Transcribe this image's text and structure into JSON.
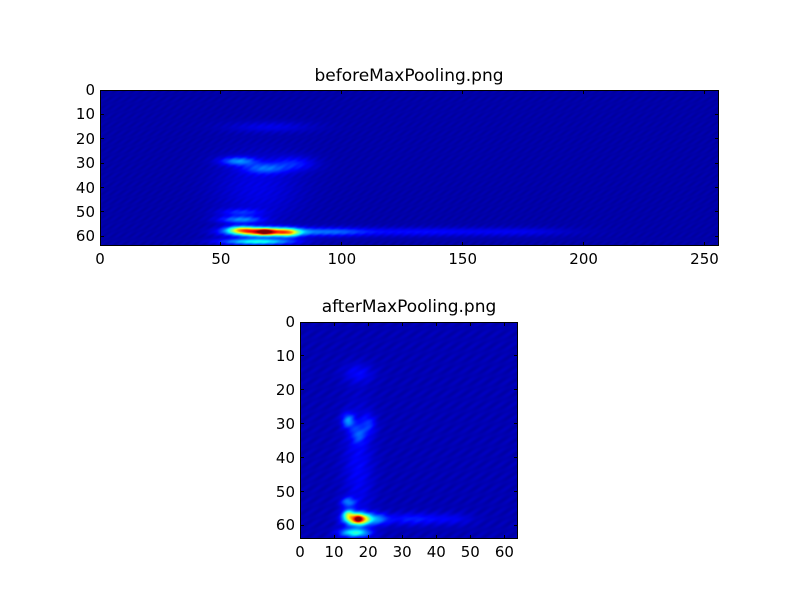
{
  "chart_data": [
    {
      "type": "heatmap",
      "title": "beforeMaxPooling.png",
      "colormap": "jet",
      "xlim": [
        0,
        256
      ],
      "ylim": [
        64,
        0
      ],
      "xticks": [
        0,
        50,
        100,
        150,
        200,
        250
      ],
      "yticks": [
        0,
        10,
        20,
        30,
        40,
        50,
        60
      ],
      "background_value": 0.04,
      "features": [
        {
          "x": 68,
          "y": 58,
          "sx": 9,
          "sy": 1.2,
          "v": 0.85
        },
        {
          "x": 68,
          "y": 58,
          "sx": 2,
          "sy": 0.8,
          "v": 0.3
        },
        {
          "x": 58,
          "y": 57,
          "sx": 4,
          "sy": 1.0,
          "v": 0.35
        },
        {
          "x": 78,
          "y": 58.5,
          "sx": 3,
          "sy": 1.2,
          "v": 0.25
        },
        {
          "x": 65,
          "y": 62,
          "sx": 10,
          "sy": 0.9,
          "v": 0.35
        },
        {
          "x": 58,
          "y": 53,
          "sx": 6,
          "sy": 1.0,
          "v": 0.2
        },
        {
          "x": 58,
          "y": 50,
          "sx": 6,
          "sy": 1.0,
          "v": 0.1
        },
        {
          "x": 57,
          "y": 29,
          "sx": 5,
          "sy": 1.2,
          "v": 0.2
        },
        {
          "x": 68,
          "y": 32,
          "sx": 6,
          "sy": 1.5,
          "v": 0.15
        },
        {
          "x": 80,
          "y": 30,
          "sx": 6,
          "sy": 2,
          "v": 0.1
        },
        {
          "x": 70,
          "y": 15,
          "sx": 12,
          "sy": 1.5,
          "v": 0.06
        },
        {
          "x": 65,
          "y": 40,
          "sx": 12,
          "sy": 10,
          "v": 0.06
        },
        {
          "x": 95,
          "y": 58,
          "sx": 10,
          "sy": 1.2,
          "v": 0.15
        },
        {
          "x": 130,
          "y": 58,
          "sx": 25,
          "sy": 1.2,
          "v": 0.09
        },
        {
          "x": 175,
          "y": 58,
          "sx": 15,
          "sy": 1.2,
          "v": 0.05
        }
      ]
    },
    {
      "type": "heatmap",
      "title": "afterMaxPooling.png",
      "colormap": "jet",
      "xlim": [
        0,
        64
      ],
      "ylim": [
        64,
        0
      ],
      "xticks": [
        0,
        10,
        20,
        30,
        40,
        50,
        60
      ],
      "yticks": [
        0,
        10,
        20,
        30,
        40,
        50,
        60
      ],
      "background_value": 0.05,
      "features": [
        {
          "x": 17,
          "y": 58,
          "sx": 2.5,
          "sy": 1.2,
          "v": 0.8
        },
        {
          "x": 17,
          "y": 58,
          "sx": 0.7,
          "sy": 0.6,
          "v": 0.3
        },
        {
          "x": 14,
          "y": 56.5,
          "sx": 1.2,
          "sy": 1.0,
          "v": 0.3
        },
        {
          "x": 16,
          "y": 62,
          "sx": 3,
          "sy": 0.9,
          "v": 0.35
        },
        {
          "x": 14,
          "y": 53,
          "sx": 1.5,
          "sy": 1.0,
          "v": 0.18
        },
        {
          "x": 14,
          "y": 29,
          "sx": 1.3,
          "sy": 1.5,
          "v": 0.2
        },
        {
          "x": 17,
          "y": 33,
          "sx": 1.5,
          "sy": 1.8,
          "v": 0.12
        },
        {
          "x": 20,
          "y": 30,
          "sx": 1.5,
          "sy": 2,
          "v": 0.1
        },
        {
          "x": 17,
          "y": 15,
          "sx": 3,
          "sy": 2,
          "v": 0.07
        },
        {
          "x": 17,
          "y": 42,
          "sx": 3,
          "sy": 12,
          "v": 0.07
        },
        {
          "x": 23,
          "y": 58,
          "sx": 2,
          "sy": 1.2,
          "v": 0.15
        },
        {
          "x": 33,
          "y": 58,
          "sx": 6,
          "sy": 1.2,
          "v": 0.1
        },
        {
          "x": 45,
          "y": 58,
          "sx": 4,
          "sy": 1.2,
          "v": 0.05
        }
      ]
    }
  ]
}
